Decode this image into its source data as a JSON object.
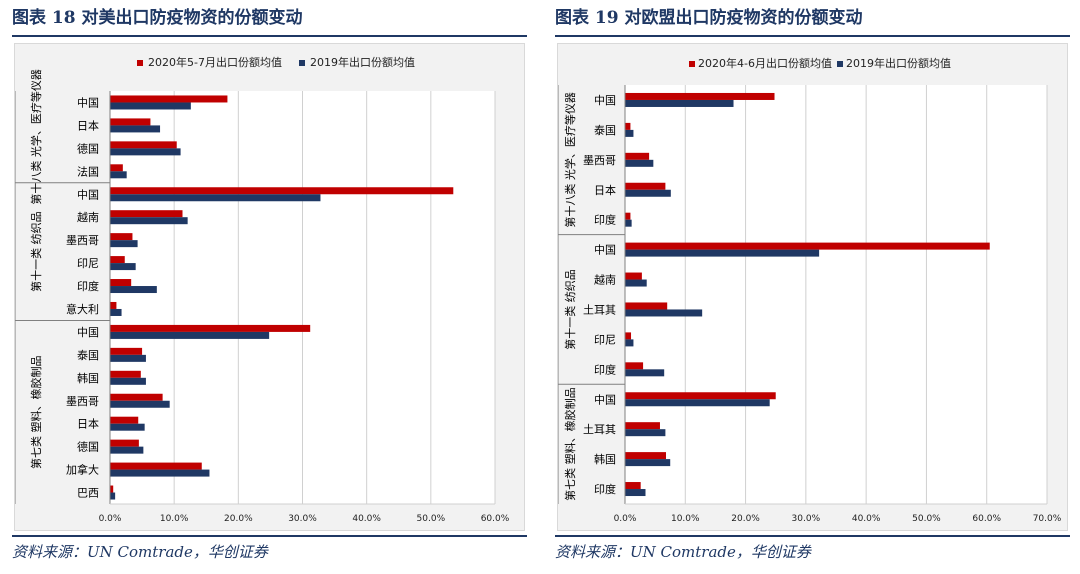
{
  "charts": [
    {
      "figure_title": "图表 18   对美出口防疫物资的份额变动",
      "source": "资料来源：UN Comtrade，华创证券"
    },
    {
      "figure_title": "图表 19   对欧盟出口防疫物资的份额变动",
      "source": "资料来源：UN Comtrade，华创证券"
    }
  ],
  "colors": {
    "series_red": "#c00000",
    "series_navy": "#1f3864",
    "title": "#1f3864"
  },
  "chart_data": [
    {
      "type": "bar",
      "orientation": "horizontal",
      "title": "对美出口防疫物资的份额变动",
      "series": [
        {
          "name": "2020年5-7月出口份额均值",
          "color": "#c00000",
          "values": [
            18.3,
            6.3,
            10.4,
            2.0,
            53.5,
            11.3,
            3.5,
            2.3,
            3.3,
            1.0,
            31.2,
            5.0,
            4.8,
            8.2,
            4.4,
            4.5,
            14.3,
            0.5
          ]
        },
        {
          "name": "2019年出口份额均值",
          "color": "#1f3864",
          "values": [
            12.6,
            7.8,
            11.0,
            2.6,
            32.8,
            12.1,
            4.3,
            4.0,
            7.3,
            1.8,
            24.8,
            5.6,
            5.6,
            9.3,
            5.4,
            5.2,
            15.5,
            0.8
          ]
        }
      ],
      "groups": [
        {
          "label": "第十八类 光学、医疗等仪器",
          "categories": [
            "中国",
            "日本",
            "德国",
            "法国"
          ]
        },
        {
          "label": "第十一类 纺织品",
          "categories": [
            "中国",
            "越南",
            "墨西哥",
            "印尼",
            "印度",
            "意大利"
          ]
        },
        {
          "label": "第七类 塑料、橡胶制品",
          "categories": [
            "中国",
            "泰国",
            "韩国",
            "墨西哥",
            "日本",
            "德国",
            "加拿大",
            "巴西"
          ]
        }
      ],
      "x_ticks": [
        "0.0%",
        "10.0%",
        "20.0%",
        "30.0%",
        "40.0%",
        "50.0%",
        "60.0%"
      ],
      "xlim": [
        0,
        60
      ]
    },
    {
      "type": "bar",
      "orientation": "horizontal",
      "title": "对欧盟出口防疫物资的份额变动",
      "series": [
        {
          "name": "2020年4-6月出口份额均值",
          "color": "#c00000",
          "values": [
            24.8,
            0.9,
            4.0,
            6.7,
            0.9,
            60.5,
            2.8,
            7.0,
            1.0,
            3.0,
            25.0,
            5.8,
            6.8,
            2.6
          ]
        },
        {
          "name": "2019年出口份额均值",
          "color": "#1f3864",
          "values": [
            18.0,
            1.4,
            4.7,
            7.6,
            1.1,
            32.2,
            3.6,
            12.8,
            1.4,
            6.5,
            24.0,
            6.7,
            7.5,
            3.4
          ]
        }
      ],
      "groups": [
        {
          "label": "第十八类 光学、医疗等仪器",
          "categories": [
            "中国",
            "泰国",
            "墨西哥",
            "日本",
            "印度"
          ]
        },
        {
          "label": "第十一类 纺织品",
          "categories": [
            "中国",
            "越南",
            "土耳其",
            "印尼",
            "印度"
          ]
        },
        {
          "label": "第七类 塑料、橡胶制品",
          "categories": [
            "中国",
            "土耳其",
            "韩国",
            "印度"
          ]
        }
      ],
      "x_ticks": [
        "0.0%",
        "10.0%",
        "20.0%",
        "30.0%",
        "40.0%",
        "50.0%",
        "60.0%",
        "70.0%"
      ],
      "xlim": [
        0,
        70
      ]
    }
  ]
}
